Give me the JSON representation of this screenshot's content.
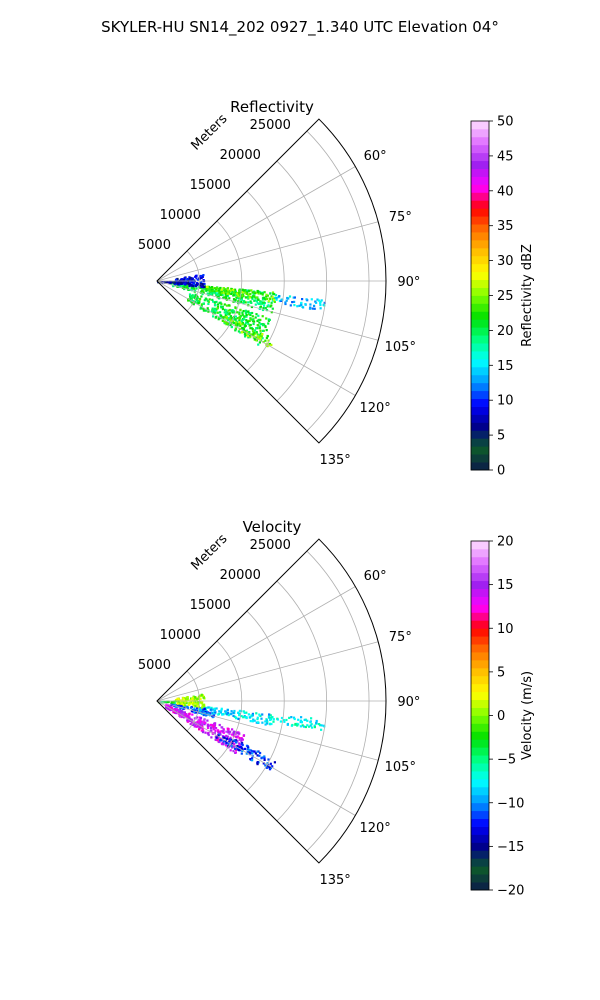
{
  "figure": {
    "title": "SKYLER-HU  SN14_202  0927_1.340 UTC Elevation 04°"
  },
  "chart_data": [
    {
      "type": "heatmap",
      "subtype": "polar-sector (radar PPI)",
      "title": "Reflectivity",
      "radial_axis_label": "Meters",
      "radial_ticks": [
        "5000",
        "10000",
        "15000",
        "20000",
        "25000"
      ],
      "radial_tick_values": [
        5000,
        10000,
        15000,
        20000,
        25000
      ],
      "rmax": 27000,
      "angular_range_deg": [
        45,
        135
      ],
      "angular_ticks": [
        "60°",
        "75°",
        "90°",
        "105°",
        "120°",
        "135°"
      ],
      "angular_tick_values": [
        60,
        75,
        90,
        105,
        120,
        135
      ],
      "grid": true,
      "colorbar": {
        "label": "Reflectivity dBZ",
        "min": 0,
        "max": 50,
        "ticks": [
          "0",
          "5",
          "10",
          "15",
          "20",
          "25",
          "30",
          "35",
          "40",
          "45",
          "50"
        ],
        "stops": [
          "#0a1a4a",
          "#0d5a2a",
          "#00008b",
          "#0000ff",
          "#0096ff",
          "#00ffff",
          "#00ff80",
          "#00e000",
          "#80ff00",
          "#ffff00",
          "#ffc000",
          "#ff7000",
          "#ff0000",
          "#ff00ff",
          "#a020f0",
          "#e070ff",
          "#ffe0ff"
        ]
      },
      "echo_regions": [
        {
          "az": [
            95,
            105
          ],
          "r": [
            1500,
            14000
          ],
          "value": 20
        },
        {
          "az": [
            95,
            100
          ],
          "r": [
            5000,
            14000
          ],
          "value": 24
        },
        {
          "az": [
            108,
            122
          ],
          "r": [
            4000,
            14000
          ],
          "value": 21
        },
        {
          "az": [
            116,
            121
          ],
          "r": [
            9000,
            15500
          ],
          "value": 24
        },
        {
          "az": [
            80,
            97
          ],
          "r": [
            2000,
            5500
          ],
          "value": 8
        },
        {
          "az": [
            88,
            94
          ],
          "r": [
            0,
            2000
          ],
          "value": 6
        },
        {
          "az": [
            96,
            100
          ],
          "r": [
            14000,
            20000
          ],
          "value": 14
        }
      ]
    },
    {
      "type": "heatmap",
      "subtype": "polar-sector (radar PPI)",
      "title": "Velocity",
      "radial_axis_label": "Meters",
      "radial_ticks": [
        "5000",
        "10000",
        "15000",
        "20000",
        "25000"
      ],
      "radial_tick_values": [
        5000,
        10000,
        15000,
        20000,
        25000
      ],
      "rmax": 27000,
      "angular_range_deg": [
        45,
        135
      ],
      "angular_ticks": [
        "60°",
        "75°",
        "90°",
        "105°",
        "120°",
        "135°"
      ],
      "angular_tick_values": [
        60,
        75,
        90,
        105,
        120,
        135
      ],
      "grid": true,
      "colorbar": {
        "label": "Velocity (m/s)",
        "min": -20,
        "max": 20,
        "ticks": [
          "−20",
          "−15",
          "−10",
          "−5",
          "0",
          "5",
          "10",
          "15",
          "20"
        ],
        "stops": [
          "#0a1a4a",
          "#0d5a2a",
          "#00008b",
          "#0000ff",
          "#0096ff",
          "#00ffff",
          "#00ff80",
          "#00e000",
          "#80ff00",
          "#ffff00",
          "#ffc000",
          "#ff7000",
          "#ff0000",
          "#ff00ff",
          "#a020f0",
          "#e070ff",
          "#ffe0ff"
        ]
      },
      "echo_regions": [
        {
          "az": [
            96,
            102
          ],
          "r": [
            5000,
            14000
          ],
          "value": -8
        },
        {
          "az": [
            98,
            106
          ],
          "r": [
            1500,
            7000
          ],
          "value": -11
        },
        {
          "az": [
            110,
            124
          ],
          "r": [
            1000,
            11000
          ],
          "value": 14
        },
        {
          "az": [
            116,
            122
          ],
          "r": [
            8000,
            15500
          ],
          "value": -12
        },
        {
          "az": [
            80,
            97
          ],
          "r": [
            2000,
            5500
          ],
          "value": 1
        },
        {
          "az": [
            88,
            94
          ],
          "r": [
            0,
            2000
          ],
          "value": -4
        },
        {
          "az": [
            96,
            100
          ],
          "r": [
            14000,
            20000
          ],
          "value": -7
        }
      ]
    }
  ]
}
